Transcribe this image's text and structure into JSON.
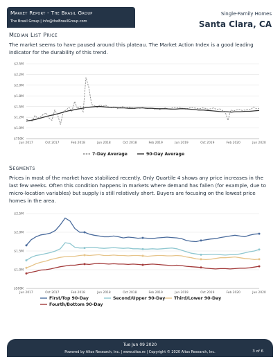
{
  "header": {
    "brand_title": "Market Report - The Brasil Group",
    "brand_contact": "The Brasil Group | info@theBrasilGroup.com",
    "subtitle": "Single-Family Homes",
    "city": "Santa Clara, CA"
  },
  "section1": {
    "title": "Median List Price",
    "text": "The market seems to have paused around this plateau. The Market Action Index is a good leading indicator for the durability of this trend."
  },
  "section2": {
    "title": "Segments",
    "text": "Prices in most of the market have stabilized recently. Only Quartile 4 shows any price increases in the last few weeks. Often this condition happens in markets where demand has fallen (for example, due to micro-location variables) but supply is still relatively short. Buyers are focusing on the lowest price homes in the area."
  },
  "colors": {
    "navy": "#243447",
    "seven_day": "#8a8a8a",
    "ninety_day": "#333333",
    "q1": "#4a6b9c",
    "q2": "#8fc7d0",
    "q3": "#e6c48a",
    "q4": "#a33a3a"
  },
  "chart_data": [
    {
      "type": "line",
      "title": "",
      "x_ticks": [
        "Jun 2017",
        "Oct 2017",
        "Feb 2018",
        "Jun 2018",
        "Oct 2018",
        "Feb 2019",
        "Jun 2019",
        "Oct 2019",
        "Feb 2020",
        "Jun 2020"
      ],
      "y_ticks": [
        "$750K",
        "$1.0M",
        "$1.2M",
        "$1.5M",
        "$1.8M",
        "$2.0M",
        "$2.2M",
        "$2.5M"
      ],
      "ylim": [
        750000,
        2500000
      ],
      "series": [
        {
          "name": "7-Day Average",
          "values": [
            1200000,
            1180000,
            1160000,
            1290000,
            1230000,
            1260000,
            1320000,
            1350000,
            1230000,
            1180000,
            1420000,
            1310000,
            1080000,
            1380000,
            1420000,
            1480000,
            1390000,
            1620000,
            1450000,
            1500000,
            1380000,
            2180000,
            1950000,
            1550000,
            1520000,
            1480000,
            1540000,
            1510000,
            1530000,
            1490000,
            1470000,
            1500000,
            1450000,
            1480000,
            1500000,
            1460000,
            1490000,
            1480000,
            1450000,
            1470000,
            1460000,
            1480000,
            1450000,
            1460000,
            1470000,
            1440000,
            1460000,
            1430000,
            1450000,
            1470000,
            1440000,
            1460000,
            1480000,
            1470000,
            1490000,
            1460000,
            1440000,
            1460000,
            1480000,
            1470000,
            1460000,
            1450000,
            1470000,
            1460000,
            1440000,
            1450000,
            1470000,
            1430000,
            1450000,
            1410000,
            1380000,
            1180000,
            1420000,
            1400000,
            1420000,
            1430000,
            1410000,
            1420000,
            1440000,
            1430000,
            1490000,
            1450000,
            1460000
          ]
        },
        {
          "name": "90-Day Average",
          "values": [
            1160000,
            1180000,
            1200000,
            1230000,
            1260000,
            1290000,
            1310000,
            1340000,
            1370000,
            1400000,
            1420000,
            1440000,
            1460000,
            1480000,
            1490000,
            1500000,
            1500000,
            1490000,
            1480000,
            1480000,
            1470000,
            1470000,
            1460000,
            1460000,
            1470000,
            1470000,
            1460000,
            1460000,
            1450000,
            1450000,
            1450000,
            1440000,
            1440000,
            1450000,
            1450000,
            1440000,
            1430000,
            1420000,
            1420000,
            1410000,
            1400000,
            1390000,
            1380000,
            1380000,
            1370000,
            1380000,
            1380000,
            1390000,
            1390000,
            1400000,
            1410000
          ]
        }
      ]
    },
    {
      "type": "line",
      "title": "",
      "x_ticks": [
        "Jun 2017",
        "Oct 2017",
        "Feb 2018",
        "Jun 2018",
        "Oct 2018",
        "Feb 2019",
        "Jun 2019",
        "Oct 2019",
        "Feb 2020",
        "Jun 2020"
      ],
      "y_ticks": [
        "$500K",
        "$1.0M",
        "$1.5M",
        "$2.0M",
        "$2.5M"
      ],
      "ylim": [
        500000,
        2500000
      ],
      "series": [
        {
          "name": "First/Top 90-Day",
          "values": [
            1650000,
            1800000,
            1880000,
            1930000,
            1950000,
            1980000,
            2050000,
            2200000,
            2380000,
            2300000,
            2100000,
            2000000,
            2000000,
            1950000,
            1920000,
            1900000,
            1880000,
            1880000,
            1900000,
            1880000,
            1850000,
            1870000,
            1860000,
            1840000,
            1850000,
            1840000,
            1830000,
            1850000,
            1860000,
            1870000,
            1860000,
            1850000,
            1830000,
            1780000,
            1760000,
            1750000,
            1780000,
            1800000,
            1820000,
            1830000,
            1860000,
            1880000,
            1900000,
            1920000,
            1900000,
            1880000,
            1920000,
            1950000,
            1960000
          ]
        },
        {
          "name": "Second/Upper 90-Day",
          "values": [
            1250000,
            1330000,
            1380000,
            1400000,
            1430000,
            1460000,
            1500000,
            1560000,
            1720000,
            1700000,
            1600000,
            1580000,
            1580000,
            1600000,
            1600000,
            1580000,
            1570000,
            1580000,
            1590000,
            1580000,
            1570000,
            1580000,
            1560000,
            1560000,
            1550000,
            1550000,
            1560000,
            1550000,
            1560000,
            1570000,
            1580000,
            1560000,
            1520000,
            1480000,
            1440000,
            1420000,
            1400000,
            1400000,
            1410000,
            1410000,
            1400000,
            1390000,
            1400000,
            1400000,
            1420000,
            1450000,
            1480000,
            1500000,
            1540000
          ]
        },
        {
          "name": "Third/Lower 90-Day",
          "values": [
            1050000,
            1100000,
            1160000,
            1200000,
            1230000,
            1270000,
            1300000,
            1330000,
            1350000,
            1360000,
            1360000,
            1380000,
            1390000,
            1380000,
            1390000,
            1400000,
            1380000,
            1380000,
            1390000,
            1380000,
            1380000,
            1370000,
            1380000,
            1380000,
            1370000,
            1360000,
            1370000,
            1380000,
            1380000,
            1370000,
            1370000,
            1380000,
            1370000,
            1340000,
            1320000,
            1290000,
            1280000,
            1270000,
            1280000,
            1300000,
            1320000,
            1320000,
            1330000,
            1340000,
            1320000,
            1300000,
            1290000,
            1270000,
            1280000
          ]
        },
        {
          "name": "Fourth/Bottom 90-Day",
          "values": [
            900000,
            930000,
            960000,
            990000,
            1000000,
            1020000,
            1050000,
            1080000,
            1100000,
            1120000,
            1120000,
            1140000,
            1150000,
            1140000,
            1160000,
            1170000,
            1160000,
            1150000,
            1160000,
            1150000,
            1150000,
            1140000,
            1150000,
            1140000,
            1130000,
            1140000,
            1150000,
            1140000,
            1130000,
            1120000,
            1110000,
            1120000,
            1110000,
            1090000,
            1080000,
            1070000,
            1060000,
            1040000,
            1030000,
            1020000,
            1030000,
            1030000,
            1020000,
            1030000,
            1040000,
            1040000,
            1050000,
            1070000,
            1090000
          ]
        }
      ]
    }
  ],
  "footer": {
    "date": "Tue Jun 09 2020",
    "copyright": "Powered by Altos Research, Inc. | www.altos.re | Copyright © 2020 Altos Research, Inc.",
    "page": "3 of 6"
  }
}
